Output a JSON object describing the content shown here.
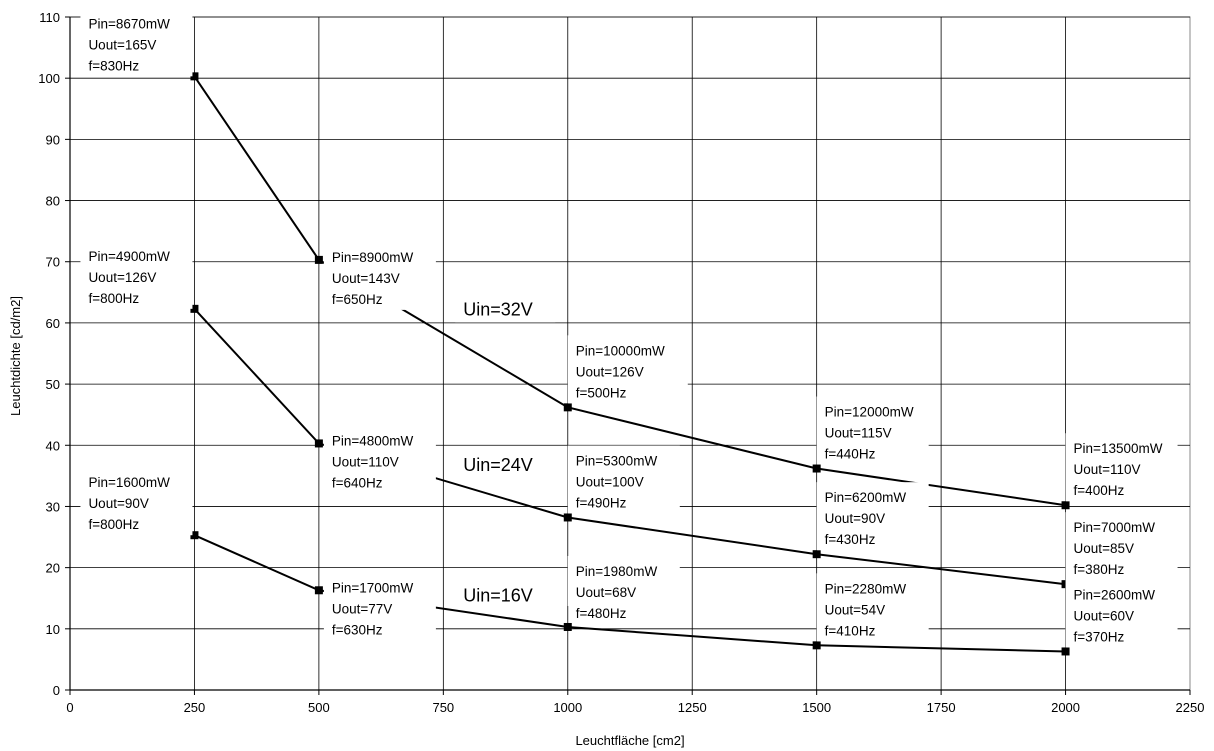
{
  "chart_data": {
    "type": "line",
    "title": "",
    "xlabel": "Leuchtfläche [cm2]",
    "ylabel": "Leuchtdichte [cd/m2]",
    "xlim": [
      0,
      2250
    ],
    "ylim": [
      0,
      110
    ],
    "xticks": [
      0,
      250,
      500,
      750,
      1000,
      1250,
      1500,
      1750,
      2000,
      2250
    ],
    "yticks": [
      0,
      10,
      20,
      30,
      40,
      50,
      60,
      70,
      80,
      90,
      100,
      110
    ],
    "grid": true,
    "line_color": "#000000",
    "series": [
      {
        "name": "Uin=32V",
        "x": [
          250,
          500,
          1000,
          1500,
          2000
        ],
        "y": [
          100.3,
          70.3,
          46.2,
          36.2,
          30.2
        ],
        "annotations": [
          [
            "Pin=8670mW",
            "Uout=165V",
            "f=830Hz"
          ],
          [
            "Pin=8900mW",
            "Uout=143V",
            "f=650Hz"
          ],
          [
            "Pin=10000mW",
            "Uout=126V",
            "f=500Hz"
          ],
          [
            "Pin=12000mW",
            "Uout=115V",
            "f=440Hz"
          ],
          [
            "Pin=13500mW",
            "Uout=110V",
            "f=400Hz"
          ]
        ]
      },
      {
        "name": "Uin=24V",
        "x": [
          250,
          500,
          1000,
          1500,
          2000
        ],
        "y": [
          62.3,
          40.3,
          28.2,
          22.2,
          17.3
        ],
        "annotations": [
          [
            "Pin=4900mW",
            "Uout=126V",
            "f=800Hz"
          ],
          [
            "Pin=4800mW",
            "Uout=110V",
            "f=640Hz"
          ],
          [
            "Pin=5300mW",
            "Uout=100V",
            "f=490Hz"
          ],
          [
            "Pin=6200mW",
            "Uout=90V",
            "f=430Hz"
          ],
          [
            "Pin=7000mW",
            "Uout=85V",
            "f=380Hz"
          ]
        ]
      },
      {
        "name": "Uin=16V",
        "x": [
          250,
          500,
          1000,
          1500,
          2000
        ],
        "y": [
          25.3,
          16.3,
          10.3,
          7.3,
          6.3
        ],
        "annotations": [
          [
            "Pin=1600mW",
            "Uout=90V",
            "f=800Hz"
          ],
          [
            "Pin=1700mW",
            "Uout=77V",
            "f=630Hz"
          ],
          [
            "Pin=1980mW",
            "Uout=68V",
            "f=480Hz"
          ],
          [
            "Pin=2280mW",
            "Uout=54V",
            "f=410Hz"
          ],
          [
            "Pin=2600mW",
            "Uout=60V",
            "f=370Hz"
          ]
        ]
      }
    ]
  }
}
